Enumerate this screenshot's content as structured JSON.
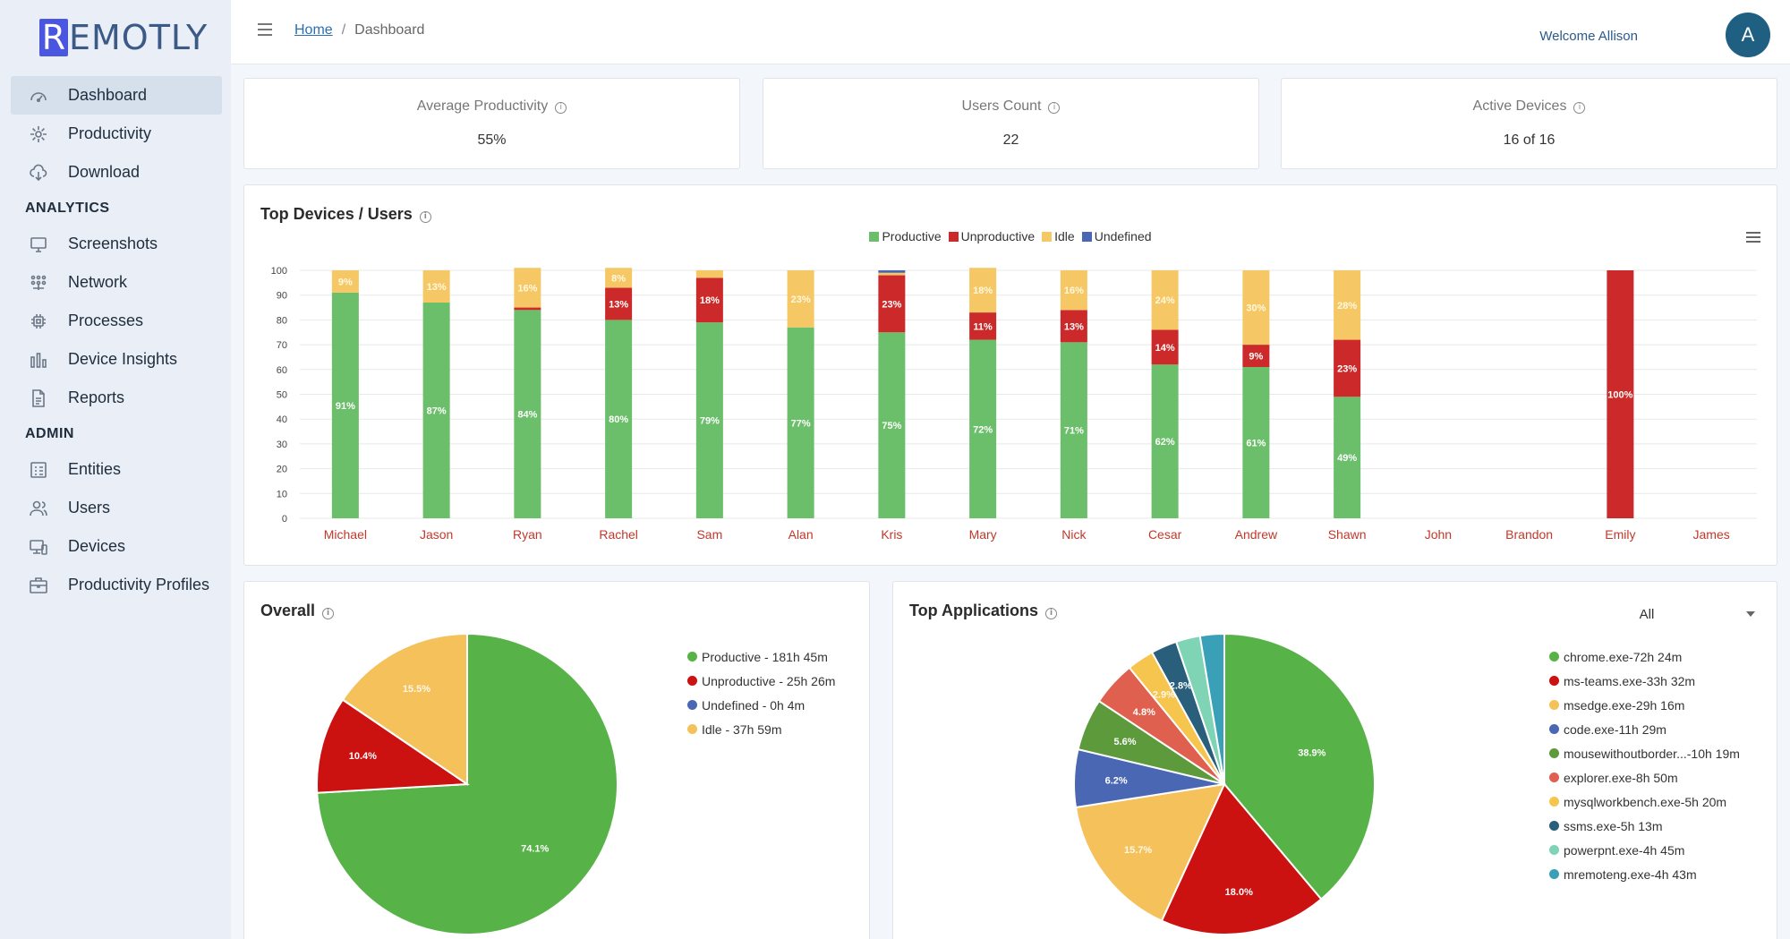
{
  "brand": {
    "logo_letter": "R",
    "logo_rest": "EMOTLY"
  },
  "sidebar": {
    "main": [
      {
        "label": "Dashboard",
        "icon": "dashboard-icon",
        "active": true
      },
      {
        "label": "Productivity",
        "icon": "productivity-icon"
      },
      {
        "label": "Download",
        "icon": "download-icon"
      }
    ],
    "analytics_title": "ANALYTICS",
    "analytics": [
      {
        "label": "Screenshots",
        "icon": "monitor-icon"
      },
      {
        "label": "Network",
        "icon": "network-icon"
      },
      {
        "label": "Processes",
        "icon": "cpu-icon"
      },
      {
        "label": "Device Insights",
        "icon": "bar-chart-icon"
      },
      {
        "label": "Reports",
        "icon": "report-icon"
      }
    ],
    "admin_title": "ADMIN",
    "admin": [
      {
        "label": "Entities",
        "icon": "entities-icon"
      },
      {
        "label": "Users",
        "icon": "users-icon"
      },
      {
        "label": "Devices",
        "icon": "devices-icon"
      },
      {
        "label": "Productivity Profiles",
        "icon": "briefcase-icon"
      }
    ]
  },
  "header": {
    "breadcrumb_home": "Home",
    "breadcrumb_sep": "/",
    "breadcrumb_current": "Dashboard",
    "welcome": "Welcome Allison",
    "avatar_initial": "A"
  },
  "kpis": {
    "avg_productivity": {
      "title": "Average Productivity",
      "value": "55%"
    },
    "users_count": {
      "title": "Users Count",
      "value": "22"
    },
    "active_devices": {
      "title": "Active Devices",
      "value": "16 of 16"
    }
  },
  "top_devices": {
    "title": "Top Devices / Users",
    "info": "i"
  },
  "overall": {
    "title": "Overall"
  },
  "top_apps": {
    "title": "Top Applications",
    "filter_value": "All"
  },
  "colors": {
    "productive": "#5cb85c",
    "unproductive": "#cc1111",
    "idle": "#f4c15b",
    "undefined": "#4a67b3"
  },
  "chart_data": [
    {
      "type": "bar",
      "stacked": true,
      "legend_position": "top-center",
      "categories": [
        "Michael",
        "Jason",
        "Ryan",
        "Rachel",
        "Sam",
        "Alan",
        "Kris",
        "Mary",
        "Nick",
        "Cesar",
        "Andrew",
        "Shawn",
        "John",
        "Brandon",
        "Emily",
        "James"
      ],
      "series": [
        {
          "name": "Productive",
          "color": "#6cbf6a",
          "values": [
            91,
            87,
            84,
            80,
            79,
            77,
            75,
            72,
            71,
            62,
            61,
            49,
            0,
            0,
            0,
            0
          ]
        },
        {
          "name": "Unproductive",
          "color": "#cc2a2a",
          "values": [
            0,
            0,
            1,
            13,
            18,
            0,
            23,
            11,
            13,
            14,
            9,
            23,
            0,
            0,
            100,
            0
          ]
        },
        {
          "name": "Idle",
          "color": "#f6c865",
          "values": [
            9,
            13,
            16,
            8,
            3,
            23,
            1,
            18,
            16,
            24,
            30,
            28,
            0,
            0,
            0,
            0
          ]
        },
        {
          "name": "Undefined",
          "color": "#4a67b3",
          "values": [
            0,
            0,
            0,
            0,
            0,
            0,
            1,
            0,
            0,
            0,
            0,
            0,
            0,
            0,
            0,
            0
          ]
        }
      ],
      "labels": {
        "Productive": [
          "91%",
          "87%",
          "84%",
          "80%",
          "79%",
          "77%",
          "75%",
          "72%",
          "71%",
          "62%",
          "61%",
          "49%",
          "",
          "",
          "",
          ""
        ],
        "Unproductive": [
          "",
          "",
          "",
          "13%",
          "18%",
          "",
          "23%",
          "11%",
          "13%",
          "14%",
          "9%",
          "23%",
          "",
          "",
          "100%",
          ""
        ],
        "Idle": [
          "9%",
          "13%",
          "16%",
          "8%",
          "",
          "23%",
          "",
          "18%",
          "16%",
          "24%",
          "30%",
          "28%",
          "",
          "",
          "",
          ""
        ]
      },
      "yticks": [
        "100",
        "90",
        "80",
        "70",
        "60",
        "50",
        "40",
        "30",
        "20",
        "10",
        "0"
      ],
      "ylim": [
        0,
        100
      ]
    },
    {
      "type": "pie",
      "title": "Overall",
      "slices": [
        {
          "name": "Productive",
          "legend": "Productive - 181h 45m",
          "value": 74.1,
          "label": "74.1%",
          "color": "#57b347"
        },
        {
          "name": "Unproductive",
          "legend": "Unproductive - 25h 26m",
          "value": 10.4,
          "label": "10.4%",
          "color": "#cc1111"
        },
        {
          "name": "Undefined",
          "legend": "Undefined - 0h 4m",
          "value": 0.03,
          "label": "",
          "color": "#4a67b3"
        },
        {
          "name": "Idle",
          "legend": "Idle - 37h 59m",
          "value": 15.5,
          "label": "15.5%",
          "color": "#f4c15b"
        }
      ],
      "legend_order": [
        0,
        1,
        2,
        3
      ]
    },
    {
      "type": "pie",
      "title": "Top Applications",
      "slices": [
        {
          "name": "chrome.exe",
          "legend": "chrome.exe-72h 24m",
          "value": 38.9,
          "label": "38.9%",
          "color": "#57b347"
        },
        {
          "name": "ms-teams.exe",
          "legend": "ms-teams.exe-33h 32m",
          "value": 18.0,
          "label": "18.0%",
          "color": "#cc1111"
        },
        {
          "name": "msedge.exe",
          "legend": "msedge.exe-29h 16m",
          "value": 15.7,
          "label": "15.7%",
          "color": "#f4c15b"
        },
        {
          "name": "code.exe",
          "legend": "code.exe-11h 29m",
          "value": 6.2,
          "label": "6.2%",
          "color": "#4a67b3"
        },
        {
          "name": "mousewithoutborder",
          "legend": "mousewithoutborder...-10h 19m",
          "value": 5.6,
          "label": "5.6%",
          "color": "#5d9a3c"
        },
        {
          "name": "explorer.exe",
          "legend": "explorer.exe-8h 50m",
          "value": 4.8,
          "label": "4.8%",
          "color": "#e0604f"
        },
        {
          "name": "mysqlworkbench.exe",
          "legend": "mysqlworkbench.exe-5h 20m",
          "value": 2.9,
          "label": "2.9%",
          "color": "#f6c54e"
        },
        {
          "name": "ssms.exe",
          "legend": "ssms.exe-5h 13m",
          "value": 2.8,
          "label": "2.8%",
          "color": "#2a5f7c"
        },
        {
          "name": "powerpnt.exe",
          "legend": "powerpnt.exe-4h 45m",
          "value": 2.6,
          "label": "",
          "color": "#7fd4b6"
        },
        {
          "name": "mremoteng.exe",
          "legend": "mremoteng.exe-4h 43m",
          "value": 2.6,
          "label": "",
          "color": "#3aa0b8"
        }
      ]
    }
  ]
}
